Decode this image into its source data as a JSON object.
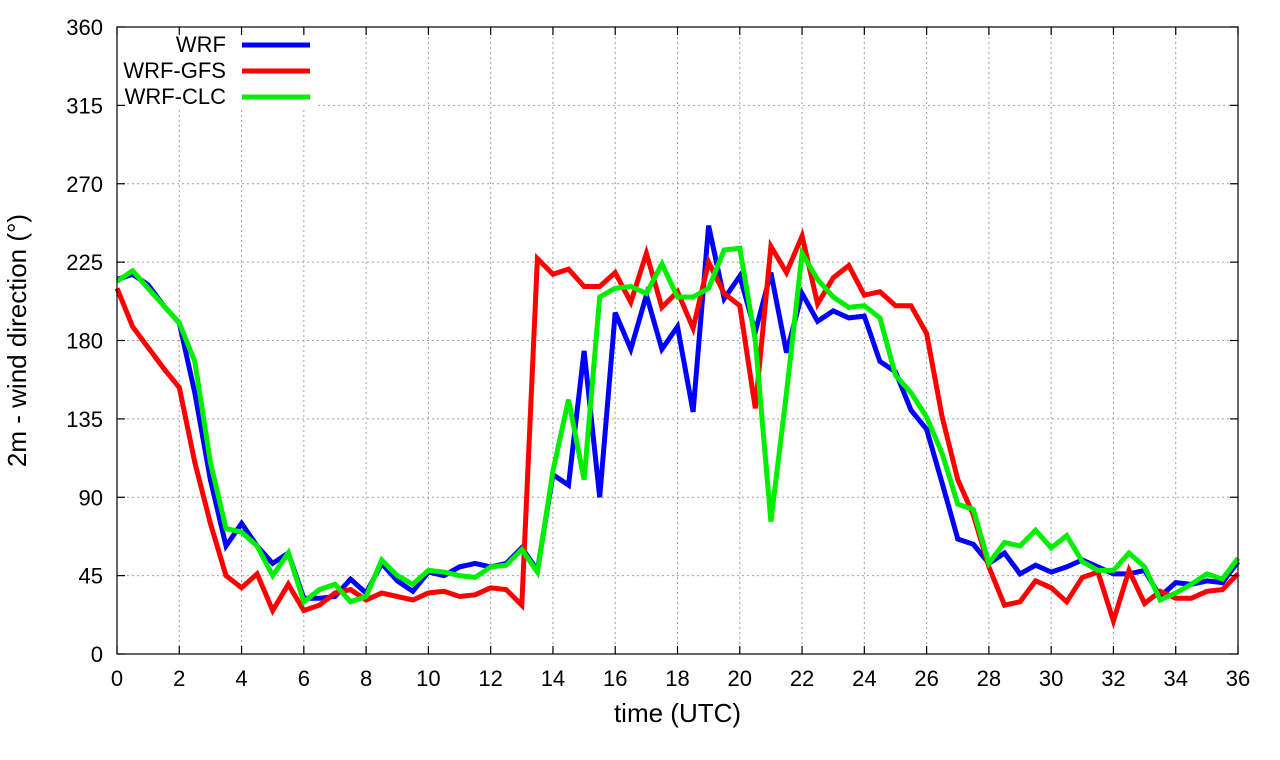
{
  "chart_data": {
    "type": "line",
    "title": "",
    "xlabel": "time (UTC)",
    "ylabel": "2m - wind direction (°)",
    "xlim": [
      0,
      36
    ],
    "ylim": [
      0,
      360
    ],
    "xticks": [
      "0",
      "2",
      "4",
      "6",
      "8",
      "10",
      "12",
      "14",
      "16",
      "18",
      "20",
      "22",
      "24",
      "26",
      "28",
      "30",
      "32",
      "34",
      "36"
    ],
    "yticks": [
      "0",
      "45",
      "90",
      "135",
      "180",
      "225",
      "270",
      "315",
      "360"
    ],
    "grid": true,
    "legend_position": "top-left",
    "x": [
      0,
      0.5,
      1,
      1.5,
      2,
      2.5,
      3,
      3.5,
      4,
      4.5,
      5,
      5.5,
      6,
      6.5,
      7,
      7.5,
      8,
      8.5,
      9,
      9.5,
      10,
      10.5,
      11,
      11.5,
      12,
      12.5,
      13,
      13.5,
      14,
      14.5,
      15,
      15.5,
      16,
      16.5,
      17,
      17.5,
      18,
      18.5,
      19,
      19.5,
      20,
      20.5,
      21,
      21.5,
      22,
      22.5,
      23,
      23.5,
      24,
      24.5,
      25,
      25.5,
      26,
      26.5,
      27,
      27.5,
      28,
      28.5,
      29,
      29.5,
      30,
      30.5,
      31,
      31.5,
      32,
      32.5,
      33,
      33.5,
      34,
      34.5,
      35,
      35.5,
      36
    ],
    "series": [
      {
        "name": "WRF",
        "color": "#0000ff",
        "values": [
          215,
          218,
          212,
          200,
          190,
          150,
          100,
          62,
          75,
          62,
          52,
          58,
          32,
          32,
          33,
          43,
          35,
          52,
          42,
          36,
          47,
          45,
          50,
          52,
          50,
          52,
          61,
          48,
          103,
          97,
          174,
          90,
          196,
          175,
          206,
          175,
          188,
          139,
          246,
          204,
          217,
          185,
          219,
          173,
          207,
          191,
          197,
          193,
          194,
          168,
          162,
          140,
          129,
          98,
          66,
          63,
          52,
          58,
          46,
          51,
          47,
          50,
          54,
          50,
          46,
          46,
          48,
          33,
          41,
          40,
          42,
          41,
          53
        ]
      },
      {
        "name": "WRF-GFS",
        "color": "#ff0000",
        "values": [
          210,
          188,
          176,
          164,
          153,
          110,
          75,
          45,
          38,
          46,
          25,
          40,
          25,
          28,
          35,
          37,
          31,
          35,
          33,
          31,
          35,
          36,
          33,
          34,
          38,
          37,
          28,
          227,
          218,
          221,
          211,
          211,
          219,
          202,
          230,
          199,
          208,
          187,
          225,
          207,
          200,
          141,
          234,
          219,
          240,
          201,
          216,
          223,
          206,
          208,
          200,
          200,
          184,
          136,
          100,
          80,
          50,
          28,
          30,
          42,
          38,
          30,
          44,
          47,
          19,
          48,
          29,
          36,
          32,
          32,
          36,
          37,
          46
        ]
      },
      {
        "name": "WRF-CLC",
        "color": "#00ee00",
        "values": [
          214,
          220,
          210,
          200,
          190,
          168,
          110,
          72,
          70,
          62,
          45,
          58,
          30,
          37,
          40,
          30,
          33,
          54,
          45,
          40,
          48,
          47,
          45,
          44,
          50,
          51,
          60,
          47,
          105,
          146,
          100,
          205,
          210,
          211,
          207,
          224,
          205,
          205,
          210,
          232,
          233,
          180,
          76,
          150,
          230,
          215,
          205,
          199,
          200,
          193,
          160,
          150,
          136,
          115,
          86,
          83,
          52,
          64,
          62,
          71,
          61,
          68,
          53,
          48,
          48,
          58,
          50,
          31,
          35,
          40,
          46,
          43,
          55
        ]
      }
    ]
  }
}
